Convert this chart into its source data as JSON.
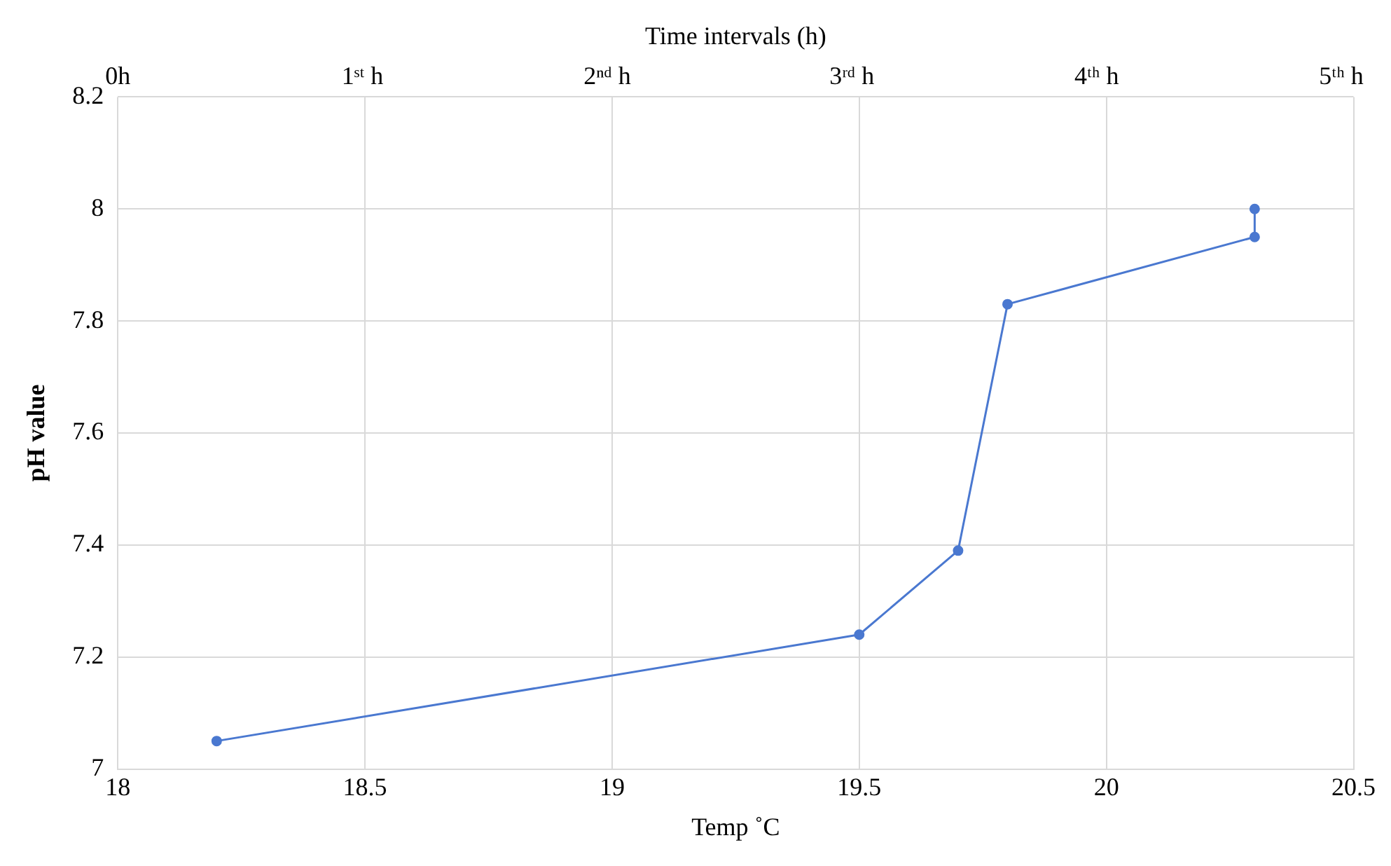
{
  "chart_data": {
    "type": "line",
    "xlabel": "Temp ˚C",
    "ylabel": "pH value",
    "x2label": "Time intervals (h)",
    "x": [
      18.2,
      19.5,
      19.7,
      19.8,
      20.3,
      20.3
    ],
    "series": [
      {
        "color": "#4a78d0",
        "values": [
          7.05,
          7.24,
          7.39,
          7.83,
          7.95,
          8.0
        ]
      }
    ],
    "xlim": [
      18,
      20.5
    ],
    "xticks": [
      18,
      18.5,
      19,
      19.5,
      20,
      20.5
    ],
    "ylim": [
      7,
      8.2
    ],
    "yticks": [
      7,
      7.2,
      7.4,
      7.6,
      7.8,
      8,
      8.2
    ],
    "x2lim": [
      0,
      5.05
    ],
    "x2ticks": [
      {
        "value": 0,
        "label": "0h"
      },
      {
        "value": 1,
        "label": "1ˢᵗ h"
      },
      {
        "value": 2,
        "label": "2ⁿᵈ h"
      },
      {
        "value": 3,
        "label": "3ʳᵈ h"
      },
      {
        "value": 4,
        "label": "4ᵗʰ h"
      },
      {
        "value": 5,
        "label": "5ᵗʰ h"
      }
    ],
    "grid": true,
    "marker": "circle",
    "line_style": "solid",
    "legend": false
  }
}
